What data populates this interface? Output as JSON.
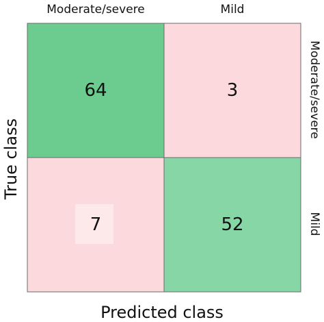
{
  "chart_data": {
    "type": "heatmap",
    "xlabel": "Predicted class",
    "ylabel": "True class",
    "x_categories": [
      "Moderate/severe",
      "Mild"
    ],
    "y_categories": [
      "Moderate/severe",
      "Mild"
    ],
    "values": [
      [
        64,
        3
      ],
      [
        7,
        52
      ]
    ],
    "colors": {
      "correct": "#86d6a6",
      "correct_dark": "#6ccb8e",
      "error": "#fbd9dc",
      "error_light": "#fde8ea",
      "border": "#6b6b6b"
    }
  }
}
